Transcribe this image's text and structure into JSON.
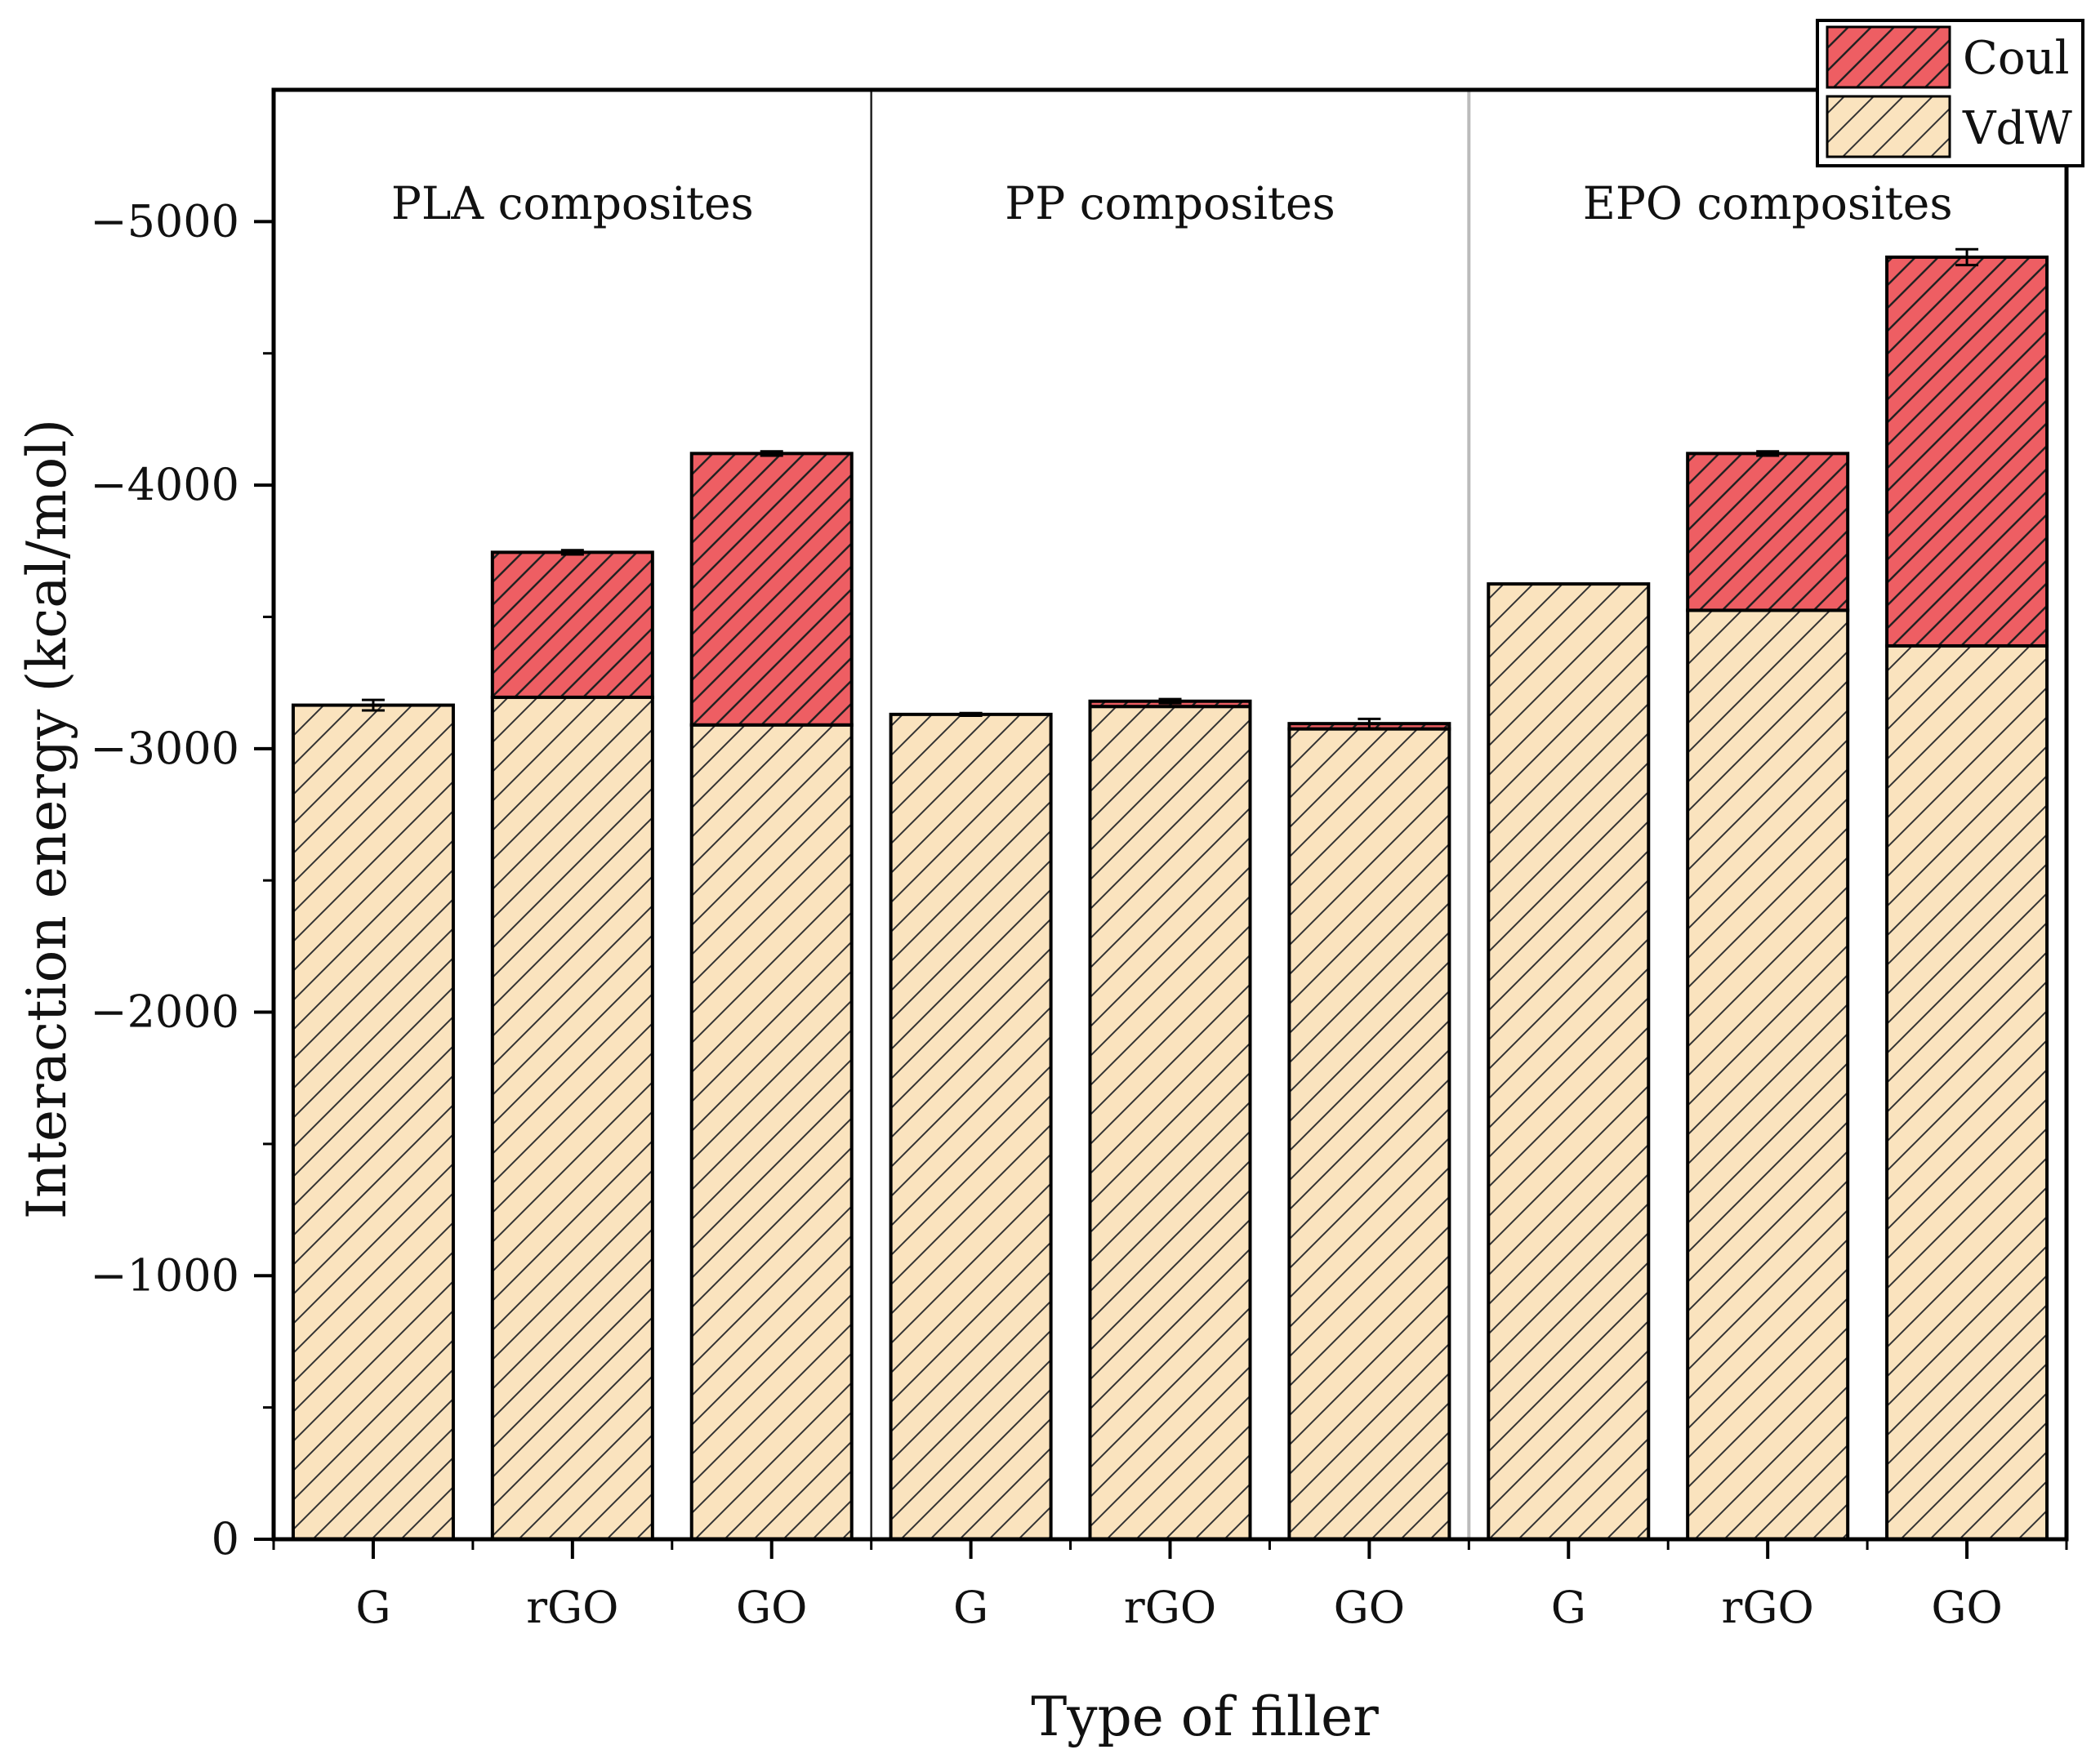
{
  "chart_data": {
    "type": "bar",
    "stacked": true,
    "xlabel": "Type of filler",
    "ylabel": "Interaction energy (kcal/mol)",
    "ylim": [
      0,
      -5500
    ],
    "yticks": [
      0,
      -1000,
      -2000,
      -3000,
      -4000,
      -5000
    ],
    "ytick_labels": [
      "0",
      "−1000",
      "−2000",
      "−3000",
      "−4000",
      "−5000"
    ],
    "groups": [
      {
        "label": "PLA composites",
        "categories": [
          "G",
          "rGO",
          "GO"
        ]
      },
      {
        "label": "PP composites",
        "categories": [
          "G",
          "rGO",
          "GO"
        ]
      },
      {
        "label": "EPO composites",
        "categories": [
          "G",
          "rGO",
          "GO"
        ]
      }
    ],
    "categories": [
      "G",
      "rGO",
      "GO",
      "G",
      "rGO",
      "GO",
      "G",
      "rGO",
      "GO"
    ],
    "series": [
      {
        "name": "VdW",
        "color": "#FAE3BE",
        "hatch": "diagonal",
        "values": [
          -3165,
          -3195,
          -3090,
          -3130,
          -3160,
          -3075,
          -3625,
          -3525,
          -3390
        ]
      },
      {
        "name": "Coul",
        "color": "#EE5E63",
        "hatch": "diagonal",
        "values": [
          0,
          -550,
          -1030,
          0,
          -20,
          -20,
          0,
          -595,
          -1475
        ]
      }
    ],
    "totals": [
      -3165,
      -3745,
      -4120,
      -3130,
      -3180,
      -3095,
      -3625,
      -4120,
      -4865
    ],
    "error_bars": [
      20,
      8,
      8,
      5,
      8,
      18,
      0,
      8,
      30
    ],
    "legend": {
      "position": "top-right",
      "entries": [
        "Coul",
        "VdW"
      ]
    }
  },
  "colors": {
    "vdw": "#FAE3BE",
    "coul": "#EE5E63",
    "separator_dark": "#222222",
    "separator_light": "#BBBBBB"
  }
}
